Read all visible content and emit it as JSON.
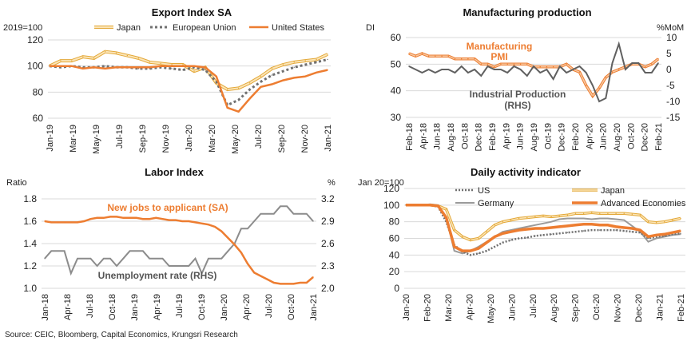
{
  "source": "Source: CEIC, Bloomberg, Capital Economics, Krungsri Research",
  "colors": {
    "orange": "#ED7D31",
    "gold": "#E3A838",
    "gold_fill": "#FBE5B8",
    "gray": "#606060",
    "dots": "#707070",
    "grid": "#D9D9D9"
  },
  "chart_data": [
    {
      "id": "export",
      "type": "line",
      "title": "Export Index SA",
      "ylabel": "2019=100",
      "ylim": [
        60,
        120
      ],
      "yticks": [
        "60",
        "80",
        "100",
        "120"
      ],
      "xlabels": [
        "Jan-19",
        "Mar-19",
        "May-19",
        "Jul-19",
        "Sep-19",
        "Nov-19",
        "Jan-20",
        "Mar-20",
        "May-20",
        "Jul-20",
        "Sep-20",
        "Nov-20",
        "Jan-21"
      ],
      "series": [
        {
          "name": "Japan",
          "values": [
            100,
            104,
            104,
            107,
            106,
            111,
            110,
            108,
            106,
            103,
            102,
            101,
            101,
            96,
            99,
            87,
            82,
            83,
            87,
            92,
            98,
            101,
            103,
            104,
            105,
            109
          ]
        },
        {
          "name": "European Union",
          "values": [
            100,
            99,
            100,
            99,
            99,
            100,
            99,
            99,
            98,
            98,
            99,
            98,
            97,
            99,
            97,
            88,
            70,
            74,
            82,
            88,
            93,
            96,
            99,
            101,
            103,
            105
          ]
        },
        {
          "name": "United States",
          "values": [
            100,
            100,
            100,
            98,
            99,
            98,
            99,
            99,
            99,
            99,
            100,
            100,
            100,
            100,
            99,
            92,
            68,
            65,
            75,
            84,
            86,
            89,
            91,
            92,
            95,
            97
          ]
        }
      ]
    },
    {
      "id": "mfg",
      "type": "line",
      "title": "Manufacturing production",
      "ylabel_left": "DI",
      "ylabel_right": "%MoM",
      "ylim_left": [
        30,
        60
      ],
      "ylim_right": [
        -15,
        10
      ],
      "yticks_left": [
        "30",
        "40",
        "50",
        "60"
      ],
      "yticks_right": [
        "-15",
        "-10",
        "-5",
        "0",
        "5",
        "10"
      ],
      "xlabels": [
        "Feb-18",
        "Apr-18",
        "Jun-18",
        "Aug-18",
        "Oct-18",
        "Dec-18",
        "Feb-19",
        "Apr-19",
        "Jun-19",
        "Aug-19",
        "Oct-19",
        "Dec-19",
        "Feb-20",
        "Apr-20",
        "Jun-20",
        "Aug-20",
        "Oct-20",
        "Dec-20",
        "Feb-21"
      ],
      "labels": {
        "pmi": "Manufacturing PMI",
        "ip": "Industrial Production (RHS)"
      },
      "series": [
        {
          "name": "Manufacturing PMI",
          "axis": "left",
          "values": [
            54,
            53,
            54,
            53,
            53,
            53,
            53,
            52,
            52,
            52,
            52,
            50,
            50,
            49,
            50,
            50,
            50,
            50,
            50,
            49,
            49,
            49,
            49,
            49,
            50,
            48,
            47,
            42,
            38,
            41,
            45,
            47,
            48,
            49,
            50,
            50,
            49,
            50,
            52
          ]
        },
        {
          "name": "Industrial Production (RHS)",
          "axis": "right",
          "values": [
            1,
            0,
            -1,
            0,
            -1,
            0,
            0,
            -1,
            1,
            -1,
            0,
            -2,
            1,
            0,
            0,
            -1,
            1,
            0,
            -2,
            1,
            -1,
            0,
            -3,
            1,
            -1,
            0,
            1,
            -1,
            -5,
            -10,
            -9,
            2,
            8,
            0,
            2,
            2,
            -1,
            -1,
            2
          ]
        }
      ]
    },
    {
      "id": "labor",
      "type": "line",
      "title": "Labor Index",
      "ylabel_left": "Ratio",
      "ylabel_right": "%",
      "ylim_left": [
        1.0,
        1.8
      ],
      "ylim_right": [
        2.0,
        3.2
      ],
      "yticks_left": [
        "1.0",
        "1.2",
        "1.4",
        "1.6",
        "1.8"
      ],
      "yticks_right": [
        "2.0",
        "2.3",
        "2.6",
        "2.9",
        "3.2"
      ],
      "xlabels": [
        "Jan-18",
        "Apr-18",
        "Jul-18",
        "Oct-18",
        "Jan-19",
        "Apr-19",
        "Jul-19",
        "Oct-19",
        "Jan-20",
        "Apr-20",
        "Jul-20",
        "Oct-20",
        "Jan-21"
      ],
      "labels": {
        "jobs": "New jobs to applicant (SA)",
        "unemp": "Unemployment rate (RHS)"
      },
      "series": [
        {
          "name": "New jobs to applicant (SA)",
          "axis": "left",
          "values": [
            1.6,
            1.59,
            1.59,
            1.59,
            1.59,
            1.59,
            1.6,
            1.62,
            1.63,
            1.63,
            1.64,
            1.64,
            1.63,
            1.63,
            1.63,
            1.62,
            1.62,
            1.63,
            1.62,
            1.61,
            1.61,
            1.6,
            1.6,
            1.59,
            1.58,
            1.57,
            1.55,
            1.51,
            1.45,
            1.39,
            1.32,
            1.22,
            1.14,
            1.11,
            1.08,
            1.05,
            1.04,
            1.04,
            1.04,
            1.05,
            1.05,
            1.1
          ]
        },
        {
          "name": "Unemployment rate (RHS)",
          "axis": "right",
          "values": [
            2.4,
            2.5,
            2.5,
            2.5,
            2.2,
            2.4,
            2.4,
            2.4,
            2.3,
            2.4,
            2.4,
            2.3,
            2.4,
            2.5,
            2.5,
            2.5,
            2.4,
            2.4,
            2.4,
            2.3,
            2.3,
            2.3,
            2.3,
            2.4,
            2.2,
            2.4,
            2.4,
            2.4,
            2.5,
            2.6,
            2.8,
            2.8,
            2.9,
            3.0,
            3.0,
            3.0,
            3.1,
            3.1,
            3.0,
            3.0,
            3.0,
            2.9
          ]
        }
      ]
    },
    {
      "id": "daily",
      "type": "line",
      "title": "Daily activity indicator",
      "ylabel": "Jan 20=100",
      "ylim": [
        0,
        120
      ],
      "yticks": [
        "0",
        "20",
        "40",
        "60",
        "80",
        "100",
        "120"
      ],
      "xlabels": [
        "Jan-20",
        "Feb-20",
        "Mar-20",
        "Apr-20",
        "May-20",
        "Jun-20",
        "Jul-20",
        "Aug-20",
        "Sep-20",
        "Oct-20",
        "Nov-20",
        "Dec-20",
        "Jan-21",
        "Feb-21"
      ],
      "series": [
        {
          "name": "US",
          "values": [
            100,
            100,
            100,
            100,
            98,
            80,
            52,
            44,
            40,
            42,
            45,
            50,
            55,
            58,
            60,
            61,
            63,
            64,
            65,
            66,
            67,
            68,
            69,
            70,
            70,
            70,
            70,
            69,
            68,
            67,
            60,
            62,
            63,
            65,
            66
          ]
        },
        {
          "name": "Japan",
          "values": [
            100,
            100,
            100,
            100,
            99,
            95,
            70,
            62,
            58,
            60,
            68,
            76,
            80,
            82,
            84,
            85,
            86,
            87,
            86,
            87,
            88,
            90,
            90,
            91,
            90,
            90,
            90,
            90,
            89,
            88,
            80,
            79,
            80,
            82,
            84
          ]
        },
        {
          "name": "Germany",
          "values": [
            100,
            100,
            100,
            101,
            100,
            85,
            45,
            42,
            45,
            50,
            56,
            62,
            68,
            70,
            72,
            74,
            76,
            78,
            80,
            83,
            84,
            84,
            84,
            83,
            84,
            84,
            83,
            82,
            75,
            68,
            56,
            60,
            62,
            64,
            65
          ]
        },
        {
          "name": "Advanced Economies",
          "values": [
            100,
            100,
            100,
            100,
            99,
            85,
            50,
            45,
            45,
            48,
            55,
            62,
            66,
            68,
            70,
            71,
            72,
            72,
            73,
            74,
            75,
            76,
            77,
            77,
            76,
            76,
            74,
            73,
            72,
            70,
            62,
            64,
            65,
            67,
            69
          ]
        }
      ]
    }
  ]
}
